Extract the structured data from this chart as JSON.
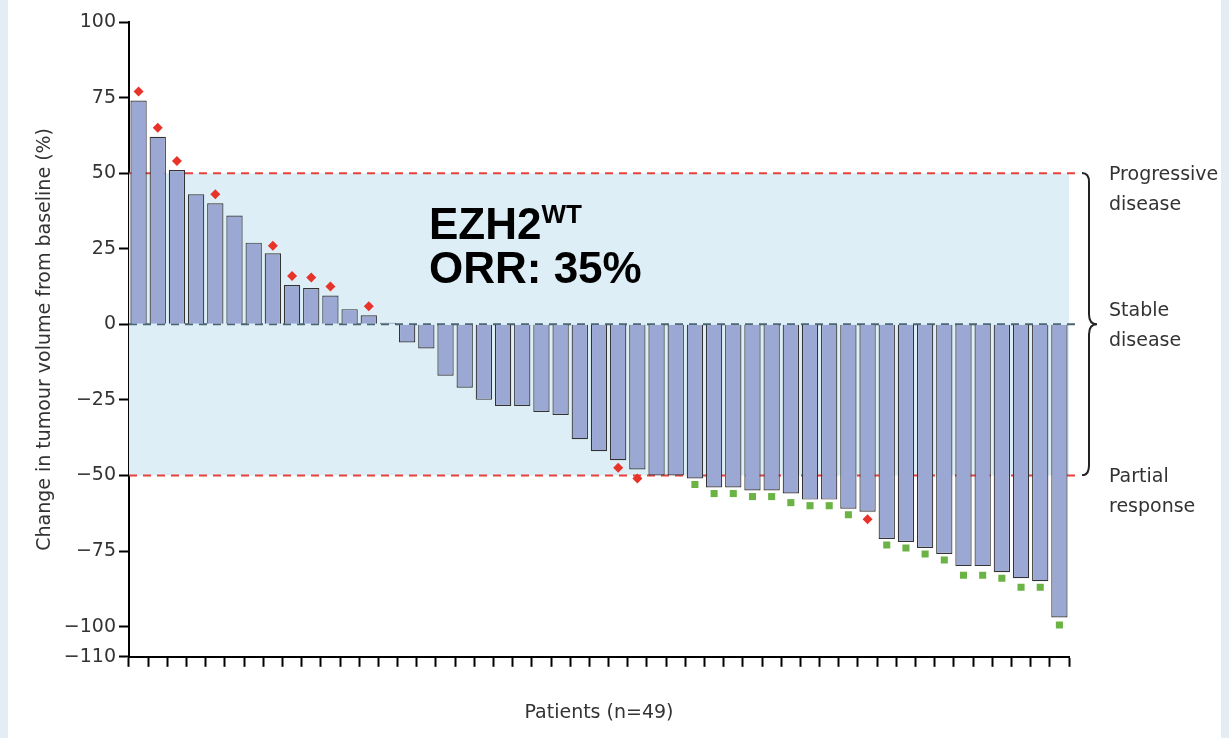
{
  "chart_data": {
    "type": "bar",
    "xlabel": "Patients (n=49)",
    "ylabel": "Change in tumour volume from baseline (%)",
    "categories": [
      null,
      null,
      null,
      null,
      null,
      null,
      null,
      null,
      null,
      null,
      null,
      null,
      null,
      null,
      null,
      null,
      null,
      null,
      null,
      null,
      null,
      null,
      null,
      null,
      null,
      null,
      null,
      null,
      null,
      null,
      null,
      null,
      null,
      null,
      null,
      null,
      null,
      null,
      null,
      null,
      null,
      null,
      null,
      null,
      null,
      null,
      null,
      null,
      null
    ],
    "series": [
      {
        "color": "#9ba8d4",
        "values": [
          74,
          62,
          51,
          43,
          40,
          36,
          27,
          23.5,
          13,
          12,
          9.5,
          5,
          3,
          0.5,
          -6,
          -8,
          -17,
          -21,
          -25,
          -27,
          -27,
          -29,
          -30,
          -38,
          -42,
          -45,
          -48,
          -50,
          -50,
          -51,
          -54,
          -54,
          -55,
          -55,
          -56,
          -58,
          -58,
          -61,
          -62,
          -71,
          -72,
          -74,
          -76,
          -80,
          -80,
          -82,
          -84,
          -85,
          -97
        ]
      },
      {
        "type": "scatter",
        "marker": "diamond",
        "color": "#e8332a",
        "values": [
          77,
          65,
          54,
          null,
          43,
          null,
          null,
          26,
          16,
          15.5,
          12.5,
          null,
          6,
          null,
          null,
          null,
          null,
          null,
          null,
          null,
          null,
          null,
          null,
          null,
          null,
          -47.5,
          -51,
          null,
          null,
          null,
          null,
          null,
          null,
          null,
          null,
          null,
          null,
          null,
          -64.5,
          null,
          null,
          null,
          null,
          null,
          null,
          null,
          null,
          null,
          null
        ]
      },
      {
        "type": "scatter",
        "marker": "square",
        "color": "#6ab344",
        "values": [
          null,
          null,
          null,
          null,
          null,
          null,
          null,
          null,
          null,
          null,
          null,
          null,
          null,
          null,
          null,
          null,
          null,
          null,
          null,
          null,
          null,
          null,
          null,
          null,
          null,
          null,
          null,
          null,
          null,
          -53,
          -56,
          -56,
          -57,
          -57,
          -59,
          -60,
          -60,
          -63,
          null,
          -73,
          -74,
          -76,
          -78,
          -83,
          -83,
          -84,
          -87,
          -87,
          -99.5
        ]
      }
    ],
    "ylim": [
      -110,
      100
    ],
    "yticks": [
      100,
      75,
      50,
      25,
      0,
      {
        "value": -25,
        "label": "−25"
      },
      {
        "value": -50,
        "label": "−50"
      },
      {
        "value": -75,
        "label": "−75"
      },
      {
        "value": -100,
        "label": "−100"
      },
      {
        "value": -110,
        "label": "−110"
      }
    ],
    "bands": [
      {
        "axis": "y",
        "from": -50,
        "to": 50,
        "label": "Stable disease",
        "color": "#ddeef6"
      }
    ],
    "ref_lines": [
      {
        "axis": "y",
        "value": 50,
        "label": "Progressive disease",
        "color": "#e8413c",
        "line_style": "dashed"
      },
      {
        "axis": "y",
        "value": 0,
        "label": null,
        "color": "#4a6470",
        "line_style": "dashed"
      },
      {
        "axis": "y",
        "value": -50,
        "label": "Partial response",
        "color": "#e8413c",
        "line_style": "dashed"
      }
    ],
    "annotations": [
      "EZH2$^{WT}$",
      "ORR: 35%"
    ],
    "grid": false,
    "legend": false
  }
}
